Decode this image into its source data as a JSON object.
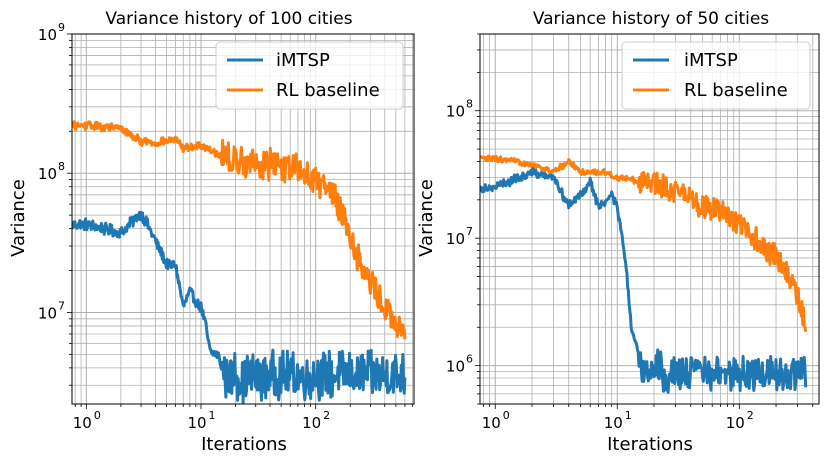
{
  "figure": {
    "colors": {
      "imtsp": "#1f77b4",
      "rl": "#ff7f0e",
      "grid": "#b0b0b0"
    }
  },
  "chart_data": [
    {
      "type": "line",
      "title": "Variance history of 100 cities",
      "xlabel": "Iterations",
      "ylabel": "Variance",
      "xscale": "log",
      "yscale": "log",
      "xlim": [
        0.75,
        720
      ],
      "ylim": [
        2200000.0,
        1000000000.0
      ],
      "grid": "both major and minor",
      "legend": "top-right",
      "x_ticks": [
        {
          "base": "10",
          "exp": "0"
        },
        {
          "base": "10",
          "exp": "1"
        },
        {
          "base": "10",
          "exp": "2"
        }
      ],
      "y_ticks": [
        {
          "base": "10",
          "exp": "7"
        },
        {
          "base": "10",
          "exp": "8"
        },
        {
          "base": "10",
          "exp": "9"
        }
      ],
      "series": [
        {
          "name": "iMTSP",
          "color": "#1f77b4",
          "points": [
            [
              0.75,
              43000000.0
            ],
            [
              1,
              43000000.0
            ],
            [
              2,
              37000000.0
            ],
            [
              3,
              52000000.0
            ],
            [
              4,
              33000000.0
            ],
            [
              5,
              22000000.0
            ],
            [
              6,
              22000000.0
            ],
            [
              7,
              11000000.0
            ],
            [
              8,
              14000000.0
            ],
            [
              9,
              12000000.0
            ],
            [
              10,
              11000000.0
            ],
            [
              11,
              8000000.0
            ],
            [
              12,
              5200000.0
            ],
            [
              14,
              5000000.0
            ],
            [
              16,
              3600000.0
            ],
            [
              18,
              3400000.0
            ],
            [
              20,
              3700000.0
            ],
            [
              22,
              3300000.0
            ],
            [
              25,
              3500000.0
            ],
            [
              30,
              3500000.0
            ],
            [
              40,
              3600000.0
            ],
            [
              60,
              3500000.0
            ],
            [
              100,
              3500000.0
            ],
            [
              200,
              3600000.0
            ],
            [
              400,
              3500000.0
            ],
            [
              600,
              3500000.0
            ]
          ],
          "noise": 0.18
        },
        {
          "name": "RL baseline",
          "color": "#ff7f0e",
          "points": [
            [
              0.75,
              220000000.0
            ],
            [
              1,
              220000000.0
            ],
            [
              2,
              210000000.0
            ],
            [
              3,
              170000000.0
            ],
            [
              4,
              165000000.0
            ],
            [
              5,
              170000000.0
            ],
            [
              6,
              175000000.0
            ],
            [
              7,
              150000000.0
            ],
            [
              10,
              160000000.0
            ],
            [
              15,
              135000000.0
            ],
            [
              20,
              120000000.0
            ],
            [
              30,
              120000000.0
            ],
            [
              50,
              115000000.0
            ],
            [
              80,
              100000000.0
            ],
            [
              100,
              90000000.0
            ],
            [
              150,
              70000000.0
            ],
            [
              200,
              35000000.0
            ],
            [
              250,
              22000000.0
            ],
            [
              300,
              16000000.0
            ],
            [
              400,
              11000000.0
            ],
            [
              500,
              8000000.0
            ],
            [
              600,
              6500000.0
            ]
          ],
          "noise": 0.12
        }
      ]
    },
    {
      "type": "line",
      "title": "Variance history of 50 cities",
      "xlabel": "Iterations",
      "ylabel": "Variance",
      "xscale": "log",
      "yscale": "log",
      "xlim": [
        0.75,
        450
      ],
      "ylim": [
        500000.0,
        400000000.0
      ],
      "grid": "both major and minor",
      "legend": "top-right",
      "x_ticks": [
        {
          "base": "10",
          "exp": "0"
        },
        {
          "base": "10",
          "exp": "1"
        },
        {
          "base": "10",
          "exp": "2"
        }
      ],
      "y_ticks": [
        {
          "base": "10",
          "exp": "6"
        },
        {
          "base": "10",
          "exp": "7"
        },
        {
          "base": "10",
          "exp": "8"
        }
      ],
      "series": [
        {
          "name": "iMTSP",
          "color": "#1f77b4",
          "points": [
            [
              0.75,
              25000000.0
            ],
            [
              1,
              25000000.0
            ],
            [
              2,
              33000000.0
            ],
            [
              3,
              30000000.0
            ],
            [
              4,
              18000000.0
            ],
            [
              5,
              22000000.0
            ],
            [
              6,
              28000000.0
            ],
            [
              7,
              18000000.0
            ],
            [
              8,
              19000000.0
            ],
            [
              9,
              22000000.0
            ],
            [
              10,
              17000000.0
            ],
            [
              11,
              10000000.0
            ],
            [
              12,
              5000000.0
            ],
            [
              13,
              2000000.0
            ],
            [
              14,
              1500000.0
            ],
            [
              16,
              1000000.0
            ],
            [
              18,
              900000.0
            ],
            [
              20,
              1000000.0
            ],
            [
              25,
              850000.0
            ],
            [
              30,
              900000.0
            ],
            [
              50,
              900000.0
            ],
            [
              100,
              850000.0
            ],
            [
              200,
              900000.0
            ],
            [
              350,
              850000.0
            ]
          ],
          "noise": 0.15
        },
        {
          "name": "RL baseline",
          "color": "#ff7f0e",
          "points": [
            [
              0.75,
              42000000.0
            ],
            [
              1,
              42000000.0
            ],
            [
              2,
              38000000.0
            ],
            [
              3,
              33000000.0
            ],
            [
              4,
              40000000.0
            ],
            [
              5,
              33000000.0
            ],
            [
              6,
              33000000.0
            ],
            [
              8,
              33000000.0
            ],
            [
              10,
              30000000.0
            ],
            [
              15,
              28000000.0
            ],
            [
              20,
              27000000.0
            ],
            [
              30,
              24000000.0
            ],
            [
              50,
              18000000.0
            ],
            [
              80,
              15000000.0
            ],
            [
              100,
              13000000.0
            ],
            [
              150,
              9000000.0
            ],
            [
              200,
              7000000.0
            ],
            [
              250,
              5000000.0
            ],
            [
              300,
              3500000.0
            ],
            [
              350,
              2200000.0
            ]
          ],
          "noise": 0.1
        }
      ]
    }
  ]
}
